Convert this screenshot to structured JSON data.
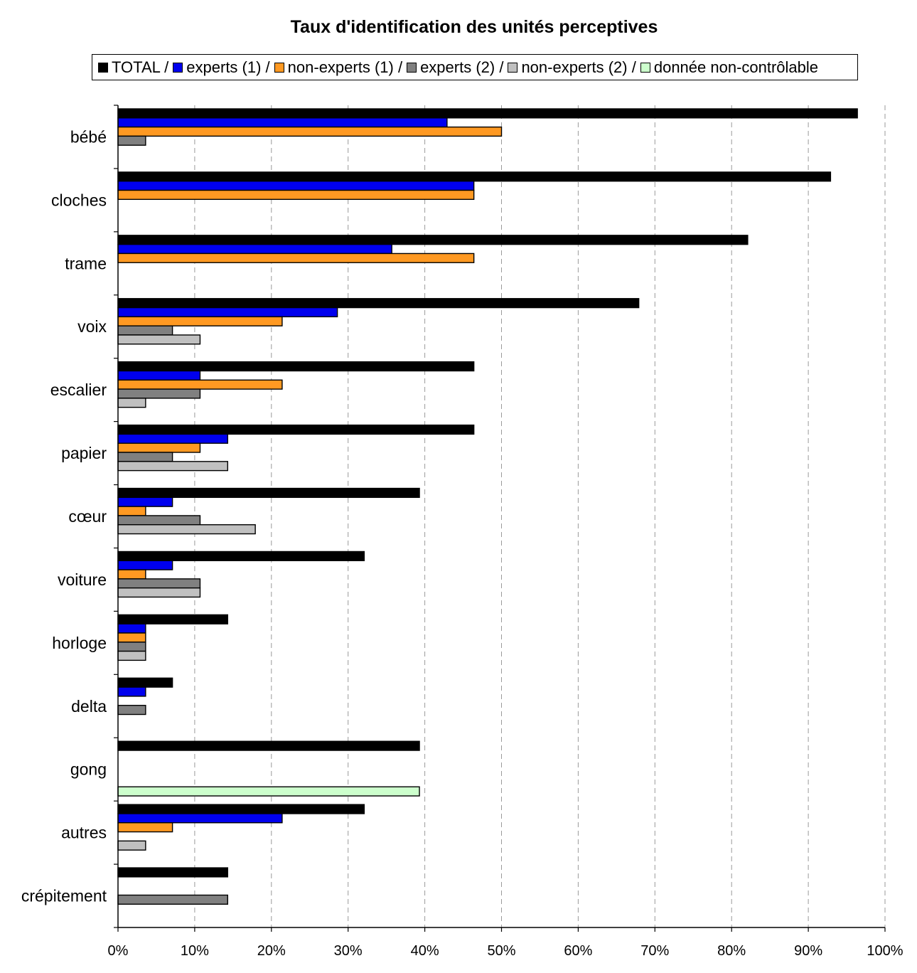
{
  "chart_data": {
    "type": "bar",
    "orientation": "horizontal",
    "title": "Taux d'identification des unités perceptives",
    "categories": [
      "bébé",
      "cloches",
      "trame",
      "voix",
      "escalier",
      "papier",
      "cœur",
      "voiture",
      "horloge",
      "delta",
      "gong",
      "autres",
      "crépitement"
    ],
    "legend_separator": " /",
    "series": [
      {
        "name": "TOTAL",
        "color": "#000000",
        "values": [
          96.4,
          92.9,
          82.1,
          67.9,
          46.4,
          46.4,
          39.3,
          32.1,
          14.3,
          7.1,
          39.3,
          32.1,
          14.3
        ]
      },
      {
        "name": "experts (1)",
        "color": "#0000ee",
        "values": [
          42.9,
          46.4,
          35.7,
          28.6,
          10.7,
          14.3,
          7.1,
          7.1,
          3.6,
          3.6,
          0,
          21.4,
          0
        ]
      },
      {
        "name": "non-experts (1)",
        "color": "#ff9922",
        "values": [
          50,
          46.4,
          46.4,
          21.4,
          21.4,
          10.7,
          3.6,
          3.6,
          3.6,
          0,
          0,
          7.1,
          0
        ]
      },
      {
        "name": "experts (2)",
        "color": "#808080",
        "values": [
          3.6,
          0,
          0,
          7.1,
          10.7,
          7.1,
          10.7,
          10.7,
          3.6,
          3.6,
          0,
          0,
          14.3
        ]
      },
      {
        "name": "non-experts (2)",
        "color": "#c0c0c0",
        "values": [
          0,
          0,
          0,
          10.7,
          3.6,
          14.3,
          17.9,
          10.7,
          3.6,
          0,
          0,
          3.6,
          0
        ]
      },
      {
        "name": "donnée non-contrôlable",
        "color": "#ccffcc",
        "values": [
          0,
          0,
          0,
          0,
          0,
          0,
          0,
          0,
          0,
          0,
          39.3,
          0,
          0
        ]
      }
    ],
    "x_ticks": [
      "0%",
      "10%",
      "20%",
      "30%",
      "40%",
      "50%",
      "60%",
      "70%",
      "80%",
      "90%",
      "100%"
    ],
    "xlim": [
      0,
      100
    ],
    "grid": "vertical dashed",
    "legend_position": "top"
  }
}
